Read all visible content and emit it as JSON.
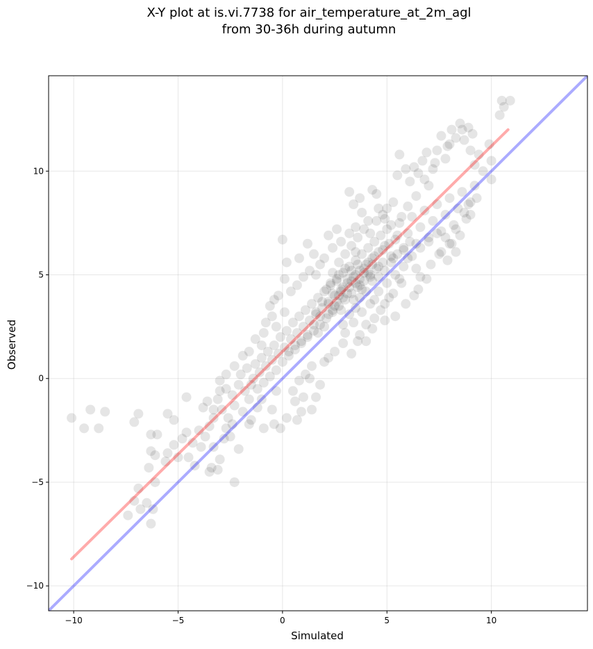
{
  "chart_data": {
    "type": "scatter",
    "title_line1": "X-Y plot at is.vi.7738 for air_temperature_at_2m_agl",
    "title_line2": "from 30-36h during autumn",
    "xlabel": "Simulated",
    "ylabel": "Observed",
    "xlim": [
      -11.2,
      14.6
    ],
    "ylim": [
      -11.2,
      14.6
    ],
    "xticks": [
      -10,
      -5,
      0,
      5,
      10
    ],
    "yticks": [
      -10,
      -5,
      0,
      5,
      10
    ],
    "xtick_labels": [
      "−10",
      "−5",
      "0",
      "5",
      "10"
    ],
    "ytick_labels": [
      "−10",
      "−5",
      "0",
      "5",
      "10"
    ],
    "grid": true,
    "point_color": "#000000",
    "point_alpha": 0.1,
    "identity_line": {
      "color": "#0000ff",
      "alpha": 0.33,
      "from": [
        -11.2,
        -11.2
      ],
      "to": [
        14.6,
        14.6
      ]
    },
    "fit_line": {
      "color": "#ff0000",
      "alpha": 0.33,
      "from": [
        -10.1,
        -8.7
      ],
      "to": [
        10.8,
        12.0
      ]
    },
    "points": [
      [
        -10.1,
        -1.9
      ],
      [
        -9.5,
        -2.4
      ],
      [
        -9.2,
        -1.5
      ],
      [
        -8.8,
        -2.4
      ],
      [
        -8.5,
        -1.6
      ],
      [
        -7.1,
        -2.1
      ],
      [
        -6.9,
        -1.7
      ],
      [
        -6.3,
        -2.7
      ],
      [
        -6.0,
        -2.7
      ],
      [
        -5.5,
        -1.7
      ],
      [
        -5.2,
        -2.0
      ],
      [
        -7.4,
        -6.6
      ],
      [
        -7.1,
        -5.9
      ],
      [
        -6.9,
        -5.3
      ],
      [
        -6.8,
        -6.3
      ],
      [
        -6.5,
        -6.0
      ],
      [
        -6.3,
        -7.0
      ],
      [
        -6.2,
        -6.3
      ],
      [
        -6.1,
        -5.0
      ],
      [
        -6.4,
        -4.3
      ],
      [
        -6.3,
        -3.5
      ],
      [
        -6.1,
        -3.7
      ],
      [
        -5.6,
        -4.0
      ],
      [
        -5.5,
        -3.6
      ],
      [
        -5.2,
        -3.2
      ],
      [
        -5.0,
        -3.8
      ],
      [
        -4.8,
        -2.9
      ],
      [
        -4.6,
        -2.6
      ],
      [
        -4.3,
        -3.1
      ],
      [
        -4.5,
        -3.8
      ],
      [
        -4.0,
        -2.5
      ],
      [
        -4.2,
        -4.2
      ],
      [
        -3.9,
        -3.3
      ],
      [
        -3.7,
        -2.8
      ],
      [
        -3.5,
        -2.3
      ],
      [
        -3.3,
        -3.3
      ],
      [
        -3.5,
        -4.5
      ],
      [
        -3.4,
        -4.3
      ],
      [
        -3.1,
        -4.4
      ],
      [
        -3.0,
        -3.9
      ],
      [
        -2.7,
        -2.4
      ],
      [
        -2.4,
        -2.2
      ],
      [
        -2.3,
        -5.0
      ],
      [
        -2.1,
        -3.4
      ],
      [
        -4.6,
        -0.9
      ],
      [
        -3.8,
        -1.4
      ],
      [
        -3.6,
        -1.1
      ],
      [
        -3.3,
        -1.5
      ],
      [
        -3.1,
        -1.0
      ],
      [
        -3.0,
        -0.6
      ],
      [
        -2.9,
        -1.5
      ],
      [
        -2.7,
        -0.5
      ],
      [
        -2.6,
        -1.9
      ],
      [
        -2.4,
        -0.8
      ],
      [
        -2.3,
        -1.3
      ],
      [
        -2.1,
        -0.3
      ],
      [
        -2.0,
        0.2
      ],
      [
        -1.8,
        -0.6
      ],
      [
        -1.7,
        0.5
      ],
      [
        -1.6,
        -1.0
      ],
      [
        -1.5,
        -0.3
      ],
      [
        -1.4,
        0.0
      ],
      [
        -1.3,
        0.7
      ],
      [
        -1.2,
        -0.5
      ],
      [
        -1.1,
        0.3
      ],
      [
        -1.0,
        1.0
      ],
      [
        -0.9,
        -0.2
      ],
      [
        -0.8,
        0.6
      ],
      [
        -0.7,
        1.3
      ],
      [
        -0.6,
        0.1
      ],
      [
        -0.5,
        0.9
      ],
      [
        -0.4,
        1.6
      ],
      [
        -0.3,
        0.4
      ],
      [
        -0.2,
        1.2
      ],
      [
        -0.1,
        2.0
      ],
      [
        0.0,
        0.8
      ],
      [
        0.1,
        1.5
      ],
      [
        0.2,
        2.3
      ],
      [
        0.3,
        1.1
      ],
      [
        0.4,
        1.9
      ],
      [
        0.5,
        2.7
      ],
      [
        0.6,
        1.4
      ],
      [
        0.7,
        2.2
      ],
      [
        0.8,
        3.0
      ],
      [
        0.9,
        1.7
      ],
      [
        1.0,
        2.5
      ],
      [
        1.1,
        3.3
      ],
      [
        1.2,
        2.0
      ],
      [
        1.3,
        2.8
      ],
      [
        1.4,
        3.6
      ],
      [
        1.5,
        2.3
      ],
      [
        1.6,
        3.1
      ],
      [
        1.7,
        3.9
      ],
      [
        1.8,
        2.6
      ],
      [
        1.9,
        3.4
      ],
      [
        2.0,
        4.2
      ],
      [
        2.1,
        2.9
      ],
      [
        2.2,
        3.7
      ],
      [
        2.3,
        4.5
      ],
      [
        2.4,
        3.2
      ],
      [
        2.5,
        4.0
      ],
      [
        2.6,
        4.8
      ],
      [
        2.7,
        3.5
      ],
      [
        2.8,
        4.3
      ],
      [
        2.9,
        5.1
      ],
      [
        3.0,
        3.8
      ],
      [
        3.1,
        4.6
      ],
      [
        3.2,
        5.4
      ],
      [
        3.3,
        4.1
      ],
      [
        3.4,
        4.9
      ],
      [
        3.5,
        5.7
      ],
      [
        3.6,
        4.4
      ],
      [
        3.7,
        5.2
      ],
      [
        3.8,
        6.0
      ],
      [
        3.9,
        4.7
      ],
      [
        4.0,
        5.5
      ],
      [
        4.1,
        6.3
      ],
      [
        4.2,
        5.0
      ],
      [
        4.3,
        5.8
      ],
      [
        4.4,
        6.6
      ],
      [
        4.5,
        5.3
      ],
      [
        4.6,
        6.1
      ],
      [
        4.7,
        6.9
      ],
      [
        4.8,
        5.6
      ],
      [
        4.9,
        6.4
      ],
      [
        5.0,
        7.2
      ],
      [
        5.2,
        5.9
      ],
      [
        5.4,
        6.7
      ],
      [
        5.6,
        7.5
      ],
      [
        5.8,
        6.2
      ],
      [
        6.0,
        7.0
      ],
      [
        6.2,
        7.8
      ],
      [
        6.4,
        6.5
      ],
      [
        6.6,
        7.3
      ],
      [
        6.8,
        8.1
      ],
      [
        7.0,
        6.8
      ],
      [
        7.2,
        7.6
      ],
      [
        7.4,
        8.4
      ],
      [
        7.6,
        7.1
      ],
      [
        7.8,
        7.9
      ],
      [
        8.0,
        8.7
      ],
      [
        8.2,
        7.4
      ],
      [
        8.4,
        8.2
      ],
      [
        8.6,
        9.0
      ],
      [
        8.8,
        7.7
      ],
      [
        9.0,
        8.5
      ],
      [
        9.2,
        9.3
      ],
      [
        2.5,
        3.5
      ],
      [
        2.8,
        4.2
      ],
      [
        3.1,
        4.8
      ],
      [
        3.3,
        5.2
      ],
      [
        3.5,
        4.6
      ],
      [
        2.9,
        3.9
      ],
      [
        3.6,
        5.5
      ],
      [
        3.2,
        4.4
      ],
      [
        2.6,
        4.7
      ],
      [
        3.9,
        5.1
      ],
      [
        3.4,
        3.8
      ],
      [
        2.7,
        5.0
      ],
      [
        3.0,
        5.3
      ],
      [
        3.7,
        4.5
      ],
      [
        2.4,
        4.1
      ],
      [
        4.1,
        5.6
      ],
      [
        2.2,
        3.6
      ],
      [
        3.8,
        4.3
      ],
      [
        2.3,
        4.6
      ],
      [
        4.2,
        4.9
      ],
      [
        3.5,
        6.1
      ],
      [
        2.8,
        3.3
      ],
      [
        1.8,
        3.0
      ],
      [
        4.4,
        5.9
      ],
      [
        1.5,
        2.6
      ],
      [
        1.2,
        2.1
      ],
      [
        0.9,
        1.8
      ],
      [
        0.6,
        1.6
      ],
      [
        0.3,
        1.3
      ],
      [
        1.7,
        2.2
      ],
      [
        2.0,
        2.5
      ],
      [
        4.6,
        5.4
      ],
      [
        4.8,
        6.2
      ],
      [
        5.1,
        6.5
      ],
      [
        5.3,
        5.8
      ],
      [
        5.5,
        6.9
      ],
      [
        1.6,
        3.2
      ],
      [
        1.9,
        3.7
      ],
      [
        2.1,
        4.3
      ],
      [
        2.4,
        5.1
      ],
      [
        2.7,
        5.6
      ],
      [
        3.0,
        6.0
      ],
      [
        3.3,
        6.4
      ],
      [
        3.6,
        6.8
      ],
      [
        3.9,
        7.2
      ],
      [
        4.2,
        7.0
      ],
      [
        4.5,
        7.6
      ],
      [
        4.8,
        7.9
      ],
      [
        3.0,
        2.2
      ],
      [
        3.4,
        2.7
      ],
      [
        3.8,
        3.2
      ],
      [
        4.2,
        3.6
      ],
      [
        4.6,
        4.2
      ],
      [
        5.0,
        4.6
      ],
      [
        5.4,
        5.0
      ],
      [
        5.8,
        5.4
      ],
      [
        6.2,
        5.9
      ],
      [
        6.6,
        6.3
      ],
      [
        7.0,
        6.6
      ],
      [
        7.4,
        7.0
      ],
      [
        3.6,
        1.8
      ],
      [
        4.0,
        2.6
      ],
      [
        4.4,
        2.9
      ],
      [
        4.9,
        3.6
      ],
      [
        5.3,
        4.1
      ],
      [
        5.7,
        4.6
      ],
      [
        6.3,
        4.0
      ],
      [
        6.6,
        4.9
      ],
      [
        7.1,
        5.5
      ],
      [
        7.6,
        6.1
      ],
      [
        8.0,
        6.5
      ],
      [
        8.3,
        6.1
      ],
      [
        2.0,
        0.8
      ],
      [
        2.5,
        1.3
      ],
      [
        2.9,
        1.7
      ],
      [
        3.3,
        1.2
      ],
      [
        2.2,
        1.0
      ],
      [
        1.4,
        0.6
      ],
      [
        1.1,
        0.2
      ],
      [
        0.8,
        -0.1
      ],
      [
        0.5,
        -0.6
      ],
      [
        1.0,
        -0.9
      ],
      [
        0.9,
        -1.6
      ],
      [
        0.2,
        -1.9
      ],
      [
        -0.1,
        -2.4
      ],
      [
        -0.4,
        -2.2
      ],
      [
        -0.5,
        -1.5
      ],
      [
        -0.9,
        -2.4
      ],
      [
        -0.3,
        -0.6
      ],
      [
        0.7,
        -2.0
      ],
      [
        1.4,
        -1.5
      ],
      [
        1.6,
        -0.9
      ],
      [
        0.6,
        -1.1
      ],
      [
        1.8,
        -0.3
      ],
      [
        1.3,
        0.0
      ],
      [
        -1.5,
        -2.0
      ],
      [
        -1.9,
        -1.6
      ],
      [
        -1.2,
        -1.4
      ],
      [
        -2.5,
        -2.8
      ],
      [
        -2.8,
        -2.9
      ],
      [
        -3.3,
        -1.9
      ],
      [
        -1.6,
        -2.2
      ],
      [
        -1.0,
        -1.0
      ],
      [
        0.0,
        6.7
      ],
      [
        0.2,
        5.6
      ],
      [
        0.1,
        4.8
      ],
      [
        -0.2,
        4.0
      ],
      [
        -0.4,
        3.8
      ],
      [
        -0.6,
        3.5
      ],
      [
        0.8,
        5.8
      ],
      [
        1.2,
        6.5
      ],
      [
        1.5,
        6.0
      ],
      [
        1.8,
        5.5
      ],
      [
        2.2,
        6.9
      ],
      [
        2.6,
        7.2
      ],
      [
        0.4,
        4.2
      ],
      [
        0.7,
        4.5
      ],
      [
        1.0,
        4.9
      ],
      [
        1.3,
        5.2
      ],
      [
        1.6,
        5.0
      ],
      [
        2.0,
        5.8
      ],
      [
        2.4,
        6.3
      ],
      [
        2.8,
        6.6
      ],
      [
        3.2,
        7.0
      ],
      [
        3.5,
        7.3
      ],
      [
        3.8,
        8.0
      ],
      [
        4.1,
        7.6
      ],
      [
        -0.5,
        3.0
      ],
      [
        -0.8,
        2.7
      ],
      [
        -0.3,
        2.5
      ],
      [
        0.1,
        3.2
      ],
      [
        -1.0,
        1.6
      ],
      [
        -1.3,
        1.9
      ],
      [
        -0.9,
        2.2
      ],
      [
        -1.6,
        1.3
      ],
      [
        -1.9,
        1.1
      ],
      [
        -2.3,
        0.6
      ],
      [
        -2.7,
        0.2
      ],
      [
        -3.0,
        -0.1
      ],
      [
        3.2,
        9.0
      ],
      [
        3.4,
        8.4
      ],
      [
        3.7,
        8.7
      ],
      [
        4.3,
        9.1
      ],
      [
        4.5,
        8.9
      ],
      [
        5.0,
        8.2
      ],
      [
        5.3,
        8.5
      ],
      [
        5.5,
        9.8
      ],
      [
        5.6,
        10.8
      ],
      [
        5.9,
        10.1
      ],
      [
        6.1,
        9.5
      ],
      [
        6.3,
        10.2
      ],
      [
        6.5,
        9.9
      ],
      [
        6.7,
        10.5
      ],
      [
        6.9,
        10.9
      ],
      [
        7.0,
        9.3
      ],
      [
        7.2,
        10.1
      ],
      [
        7.4,
        11.0
      ],
      [
        7.6,
        11.7
      ],
      [
        7.8,
        10.6
      ],
      [
        8.0,
        11.3
      ],
      [
        8.1,
        12.0
      ],
      [
        8.3,
        11.6
      ],
      [
        8.5,
        12.3
      ],
      [
        8.7,
        11.5
      ],
      [
        8.9,
        12.1
      ],
      [
        9.0,
        11.0
      ],
      [
        9.2,
        10.3
      ],
      [
        9.4,
        10.8
      ],
      [
        9.6,
        10.0
      ],
      [
        9.9,
        11.3
      ],
      [
        10.0,
        10.5
      ],
      [
        10.0,
        9.6
      ],
      [
        10.4,
        12.7
      ],
      [
        10.5,
        13.4
      ],
      [
        10.6,
        13.1
      ],
      [
        10.9,
        13.4
      ],
      [
        9.1,
        11.8
      ],
      [
        8.6,
        12.0
      ],
      [
        7.9,
        11.2
      ],
      [
        7.3,
        10.4
      ],
      [
        6.8,
        9.6
      ],
      [
        6.4,
        8.8
      ],
      [
        6.0,
        8.3
      ],
      [
        5.7,
        7.8
      ],
      [
        5.2,
        7.4
      ],
      [
        4.9,
        7.7
      ],
      [
        4.6,
        8.2
      ],
      [
        7.5,
        6.0
      ],
      [
        7.8,
        6.8
      ],
      [
        8.1,
        6.5
      ],
      [
        8.3,
        7.2
      ],
      [
        8.7,
        8.0
      ],
      [
        9.0,
        7.9
      ],
      [
        9.3,
        8.7
      ],
      [
        8.9,
        8.4
      ],
      [
        8.5,
        6.9
      ],
      [
        7.9,
        5.7
      ],
      [
        6.9,
        4.8
      ],
      [
        6.5,
        4.3
      ],
      [
        5.9,
        3.6
      ],
      [
        5.4,
        3.0
      ],
      [
        4.9,
        2.8
      ],
      [
        4.3,
        2.4
      ],
      [
        4.0,
        1.8
      ],
      [
        3.7,
        2.1
      ],
      [
        6.4,
        5.3
      ],
      [
        6.0,
        5.8
      ],
      [
        5.6,
        4.8
      ],
      [
        5.1,
        3.9
      ],
      [
        4.7,
        3.3
      ],
      [
        4.4,
        3.8
      ],
      [
        2.9,
        2.6
      ],
      [
        3.2,
        3.1
      ],
      [
        3.5,
        3.4
      ],
      [
        3.7,
        3.9
      ],
      [
        4.0,
        4.2
      ],
      [
        4.3,
        4.7
      ],
      [
        4.6,
        4.9
      ],
      [
        4.9,
        5.2
      ],
      [
        5.2,
        5.6
      ],
      [
        5.5,
        6.0
      ],
      [
        5.8,
        6.3
      ],
      [
        6.1,
        6.6
      ],
      [
        2.7,
        4.0
      ],
      [
        2.9,
        4.4
      ],
      [
        3.1,
        4.1
      ],
      [
        3.3,
        4.7
      ],
      [
        3.5,
        5.0
      ],
      [
        3.7,
        4.8
      ],
      [
        3.9,
        5.3
      ],
      [
        4.1,
        5.1
      ],
      [
        4.3,
        5.5
      ],
      [
        2.6,
        3.7
      ],
      [
        2.4,
        3.3
      ],
      [
        2.2,
        3.1
      ]
    ]
  }
}
